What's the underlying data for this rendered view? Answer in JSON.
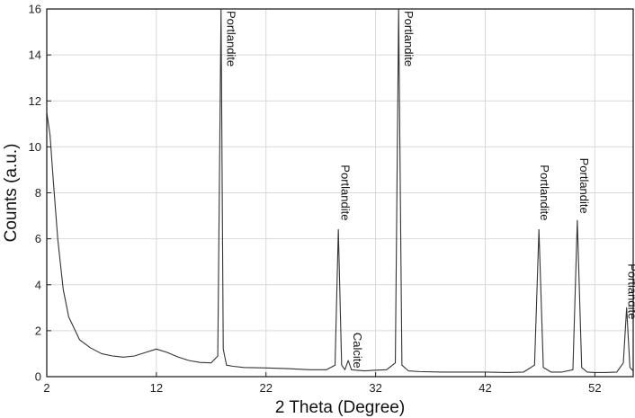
{
  "chart_data": {
    "type": "line",
    "xlabel": "2 Theta (Degree)",
    "ylabel": "Counts (a.u.)",
    "xlim": [
      2,
      55.5
    ],
    "ylim": [
      0,
      16
    ],
    "xticks": [
      2,
      12,
      22,
      32,
      42,
      52
    ],
    "yticks": [
      0,
      2,
      4,
      6,
      8,
      10,
      12,
      14,
      16
    ],
    "grid": true,
    "series": [
      {
        "x": [
          2,
          2.3,
          2.6,
          3,
          3.5,
          4,
          5,
          6,
          7,
          8,
          9,
          10,
          11,
          12,
          13,
          14,
          15,
          16,
          17,
          17.6,
          17.9,
          18.1,
          18.4,
          19,
          20,
          22,
          24,
          26,
          27.5,
          28.3,
          28.6,
          28.9,
          29.2,
          29.5,
          29.8,
          30.2,
          31,
          32,
          33,
          33.8,
          34.1,
          34.4,
          35,
          36,
          38,
          40,
          42,
          44,
          45.5,
          46.5,
          46.9,
          47.3,
          48,
          49,
          50,
          50.4,
          50.8,
          51.3,
          52,
          53,
          54,
          54.6,
          54.9,
          55.2,
          55.5
        ],
        "y": [
          11.5,
          10.5,
          8.5,
          6.0,
          3.8,
          2.6,
          1.6,
          1.25,
          1.0,
          0.9,
          0.85,
          0.9,
          1.05,
          1.2,
          1.05,
          0.85,
          0.7,
          0.62,
          0.6,
          0.9,
          16.0,
          1.2,
          0.5,
          0.45,
          0.4,
          0.38,
          0.35,
          0.3,
          0.3,
          0.5,
          6.4,
          0.5,
          0.3,
          0.7,
          0.3,
          0.28,
          0.25,
          0.28,
          0.3,
          0.6,
          16.0,
          0.5,
          0.25,
          0.22,
          0.2,
          0.2,
          0.2,
          0.18,
          0.2,
          0.5,
          6.4,
          0.4,
          0.2,
          0.2,
          0.3,
          6.8,
          0.4,
          0.2,
          0.18,
          0.18,
          0.2,
          0.6,
          3.0,
          0.4,
          0.25
        ]
      }
    ],
    "annotations": [
      {
        "text": "Portlandite",
        "x": 18.3,
        "y": 16.0
      },
      {
        "text": "Portlandite",
        "x": 28.7,
        "y": 9.3
      },
      {
        "text": "Calcite",
        "x": 29.8,
        "y": 2.0
      },
      {
        "text": "Portlandite",
        "x": 34.5,
        "y": 16.0
      },
      {
        "text": "Portlandite",
        "x": 46.9,
        "y": 9.3
      },
      {
        "text": "Portlandite",
        "x": 50.5,
        "y": 9.6
      },
      {
        "text": "Portlandite",
        "x": 54.9,
        "y": 5.0
      }
    ]
  }
}
